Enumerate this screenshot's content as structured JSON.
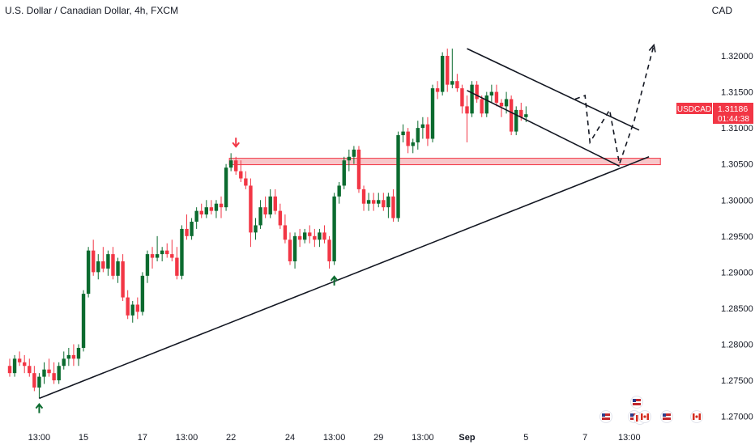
{
  "header": {
    "title": "U.S. Dollar / Canadian Dollar, 4h, FXCM",
    "currency": "CAD"
  },
  "price_tag": {
    "symbol": "USDCAD",
    "price": "1.31186",
    "countdown": "01:44:38",
    "color": "#f23645"
  },
  "colors": {
    "up": "#089981",
    "down": "#f23645",
    "up_dark": "#0b6b2f",
    "zone_fill": "#f8c6c9",
    "zone_stroke": "#f23645",
    "line": "#131722"
  },
  "chart_data": {
    "type": "candlestick",
    "ylim": [
      1.2685,
      1.3255
    ],
    "y_ticks": [
      "1.32000",
      "1.31500",
      "1.31000",
      "1.30500",
      "1.30000",
      "1.29500",
      "1.29000",
      "1.28500",
      "1.28000",
      "1.27500",
      "1.27000"
    ],
    "y_tick_values": [
      1.32,
      1.315,
      1.31,
      1.305,
      1.3,
      1.295,
      1.29,
      1.285,
      1.28,
      1.275,
      1.27
    ],
    "x_ticks": [
      {
        "label": "13:00",
        "bar": 6,
        "bold": false
      },
      {
        "label": "15",
        "bar": 15,
        "bold": false
      },
      {
        "label": "17",
        "bar": 27,
        "bold": false
      },
      {
        "label": "13:00",
        "bar": 36,
        "bold": false
      },
      {
        "label": "22",
        "bar": 45,
        "bold": false
      },
      {
        "label": "24",
        "bar": 57,
        "bold": false
      },
      {
        "label": "13:00",
        "bar": 66,
        "bold": false
      },
      {
        "label": "29",
        "bar": 75,
        "bold": false
      },
      {
        "label": "13:00",
        "bar": 84,
        "bold": false
      },
      {
        "label": "Sep",
        "bar": 93,
        "bold": true
      },
      {
        "label": "5",
        "bar": 105,
        "bold": false
      },
      {
        "label": "7",
        "bar": 117,
        "bold": false
      },
      {
        "label": "13:00",
        "bar": 126,
        "bold": false
      }
    ],
    "candles": [
      [
        1.277,
        1.278,
        1.2755,
        1.276
      ],
      [
        1.276,
        1.2785,
        1.2755,
        1.278
      ],
      [
        1.278,
        1.279,
        1.277,
        1.2775
      ],
      [
        1.2775,
        1.2785,
        1.276,
        1.277
      ],
      [
        1.277,
        1.278,
        1.2755,
        1.276
      ],
      [
        1.276,
        1.277,
        1.2735,
        1.274
      ],
      [
        1.274,
        1.276,
        1.2725,
        1.2755
      ],
      [
        1.2755,
        1.2775,
        1.2745,
        1.2765
      ],
      [
        1.2765,
        1.278,
        1.2755,
        1.276
      ],
      [
        1.276,
        1.2775,
        1.2745,
        1.275
      ],
      [
        1.275,
        1.2775,
        1.2745,
        1.277
      ],
      [
        1.277,
        1.279,
        1.2765,
        1.278
      ],
      [
        1.278,
        1.2795,
        1.277,
        1.2785
      ],
      [
        1.2785,
        1.28,
        1.277,
        1.278
      ],
      [
        1.278,
        1.28,
        1.277,
        1.2795
      ],
      [
        1.2795,
        1.2875,
        1.279,
        1.287
      ],
      [
        1.287,
        1.2935,
        1.2865,
        1.293
      ],
      [
        1.293,
        1.2945,
        1.2895,
        1.29
      ],
      [
        1.29,
        1.2925,
        1.289,
        1.2915
      ],
      [
        1.2915,
        1.2935,
        1.29,
        1.2905
      ],
      [
        1.2905,
        1.293,
        1.2895,
        1.2925
      ],
      [
        1.2925,
        1.2935,
        1.289,
        1.2895
      ],
      [
        1.2895,
        1.292,
        1.2885,
        1.2915
      ],
      [
        1.2915,
        1.2925,
        1.286,
        1.2865
      ],
      [
        1.2865,
        1.2875,
        1.2835,
        1.284
      ],
      [
        1.284,
        1.286,
        1.283,
        1.2855
      ],
      [
        1.2855,
        1.2865,
        1.2835,
        1.2845
      ],
      [
        1.2845,
        1.29,
        1.284,
        1.2895
      ],
      [
        1.2895,
        1.293,
        1.2885,
        1.2925
      ],
      [
        1.2925,
        1.2935,
        1.2905,
        1.292
      ],
      [
        1.292,
        1.295,
        1.2915,
        1.2925
      ],
      [
        1.2925,
        1.2935,
        1.2915,
        1.293
      ],
      [
        1.293,
        1.294,
        1.292,
        1.2925
      ],
      [
        1.2925,
        1.2945,
        1.2915,
        1.292
      ],
      [
        1.292,
        1.2935,
        1.289,
        1.2895
      ],
      [
        1.2895,
        1.2965,
        1.289,
        1.296
      ],
      [
        1.296,
        1.298,
        1.2945,
        1.295
      ],
      [
        1.295,
        1.2975,
        1.2945,
        1.297
      ],
      [
        1.297,
        1.299,
        1.296,
        1.2985
      ],
      [
        1.2985,
        1.2995,
        1.2975,
        1.298
      ],
      [
        1.298,
        1.3,
        1.2975,
        1.299
      ],
      [
        1.299,
        1.3,
        1.298,
        1.2985
      ],
      [
        1.2985,
        1.3,
        1.2975,
        1.2995
      ],
      [
        1.2995,
        1.3005,
        1.2975,
        1.299
      ],
      [
        1.299,
        1.305,
        1.2985,
        1.3045
      ],
      [
        1.3045,
        1.3065,
        1.304,
        1.3055
      ],
      [
        1.3055,
        1.306,
        1.3035,
        1.304
      ],
      [
        1.304,
        1.3055,
        1.3025,
        1.303
      ],
      [
        1.303,
        1.304,
        1.3015,
        1.302
      ],
      [
        1.302,
        1.303,
        1.2935,
        1.2955
      ],
      [
        1.2955,
        1.2975,
        1.2945,
        1.2965
      ],
      [
        1.2965,
        1.3,
        1.296,
        1.299
      ],
      [
        1.299,
        1.3005,
        1.2975,
        1.298
      ],
      [
        1.298,
        1.3015,
        1.2975,
        1.3005
      ],
      [
        1.3005,
        1.3015,
        1.298,
        1.2985
      ],
      [
        1.2985,
        1.2995,
        1.296,
        1.2965
      ],
      [
        1.2965,
        1.298,
        1.294,
        1.2945
      ],
      [
        1.2945,
        1.2955,
        1.291,
        1.2915
      ],
      [
        1.2915,
        1.2955,
        1.2905,
        1.295
      ],
      [
        1.295,
        1.296,
        1.2935,
        1.2945
      ],
      [
        1.2945,
        1.296,
        1.294,
        1.2955
      ],
      [
        1.2955,
        1.2965,
        1.294,
        1.295
      ],
      [
        1.295,
        1.296,
        1.2935,
        1.2945
      ],
      [
        1.2945,
        1.296,
        1.2935,
        1.2955
      ],
      [
        1.2955,
        1.2965,
        1.294,
        1.2945
      ],
      [
        1.2945,
        1.295,
        1.2905,
        1.2915
      ],
      [
        1.2915,
        1.301,
        1.291,
        1.3005
      ],
      [
        1.3005,
        1.3025,
        1.2995,
        1.302
      ],
      [
        1.302,
        1.306,
        1.3015,
        1.3055
      ],
      [
        1.3055,
        1.307,
        1.304,
        1.306
      ],
      [
        1.306,
        1.3075,
        1.305,
        1.307
      ],
      [
        1.307,
        1.3075,
        1.301,
        1.3015
      ],
      [
        1.3015,
        1.302,
        1.2985,
        1.2995
      ],
      [
        1.2995,
        1.301,
        1.2985,
        1.3
      ],
      [
        1.3,
        1.301,
        1.2985,
        1.2995
      ],
      [
        1.2995,
        1.301,
        1.299,
        1.3
      ],
      [
        1.3,
        1.301,
        1.2985,
        1.299
      ],
      [
        1.299,
        1.301,
        1.2975,
        1.3005
      ],
      [
        1.3005,
        1.3015,
        1.297,
        1.2975
      ],
      [
        1.2975,
        1.3095,
        1.297,
        1.309
      ],
      [
        1.309,
        1.3105,
        1.308,
        1.3095
      ],
      [
        1.3095,
        1.31,
        1.3065,
        1.3075
      ],
      [
        1.3075,
        1.3085,
        1.3065,
        1.308
      ],
      [
        1.308,
        1.311,
        1.307,
        1.31
      ],
      [
        1.31,
        1.3115,
        1.3085,
        1.3105
      ],
      [
        1.3105,
        1.3115,
        1.3075,
        1.3085
      ],
      [
        1.3085,
        1.316,
        1.308,
        1.3155
      ],
      [
        1.3155,
        1.3165,
        1.314,
        1.315
      ],
      [
        1.315,
        1.3205,
        1.3145,
        1.32
      ],
      [
        1.32,
        1.321,
        1.315,
        1.316
      ],
      [
        1.316,
        1.321,
        1.3155,
        1.3165
      ],
      [
        1.3165,
        1.3175,
        1.315,
        1.3155
      ],
      [
        1.3155,
        1.316,
        1.312,
        1.313
      ],
      [
        1.313,
        1.3145,
        1.308,
        1.312
      ],
      [
        1.312,
        1.3165,
        1.3115,
        1.316
      ],
      [
        1.316,
        1.3165,
        1.3135,
        1.314
      ],
      [
        1.314,
        1.3145,
        1.3115,
        1.312
      ],
      [
        1.312,
        1.315,
        1.3115,
        1.3145
      ],
      [
        1.3145,
        1.316,
        1.3135,
        1.315
      ],
      [
        1.315,
        1.316,
        1.313,
        1.3135
      ],
      [
        1.3135,
        1.314,
        1.3115,
        1.313
      ],
      [
        1.313,
        1.315,
        1.312,
        1.314
      ],
      [
        1.314,
        1.3145,
        1.309,
        1.3095
      ],
      [
        1.3095,
        1.313,
        1.309,
        1.3125
      ],
      [
        1.3125,
        1.3135,
        1.311,
        1.3115
      ],
      [
        1.3115,
        1.313,
        1.3108,
        1.3119
      ]
    ],
    "zone": {
      "y_top": 1.3058,
      "y_bottom": 1.305,
      "bar_start": 45,
      "bar_end": 132
    },
    "lines": [
      {
        "name": "support-trendline",
        "from": [
          6,
          1.2725
        ],
        "to": [
          130,
          1.306
        ]
      },
      {
        "name": "channel-upper-line",
        "from": [
          93,
          1.321
        ],
        "to": [
          128,
          1.3097
        ]
      },
      {
        "name": "channel-lower-line",
        "from": [
          93,
          1.3152
        ],
        "to": [
          124,
          1.3047
        ]
      }
    ],
    "projection_path": [
      [
        115,
        1.314
      ],
      [
        117,
        1.3145
      ],
      [
        118,
        1.308
      ],
      [
        122,
        1.3125
      ],
      [
        124,
        1.305
      ],
      [
        127,
        1.311
      ],
      [
        131,
        1.3215
      ]
    ],
    "arrows": [
      {
        "kind": "up",
        "bar": 6,
        "value": 1.2718
      },
      {
        "kind": "down",
        "bar": 46,
        "value": 1.3073
      },
      {
        "kind": "up",
        "bar": 66,
        "value": 1.2895
      }
    ]
  }
}
